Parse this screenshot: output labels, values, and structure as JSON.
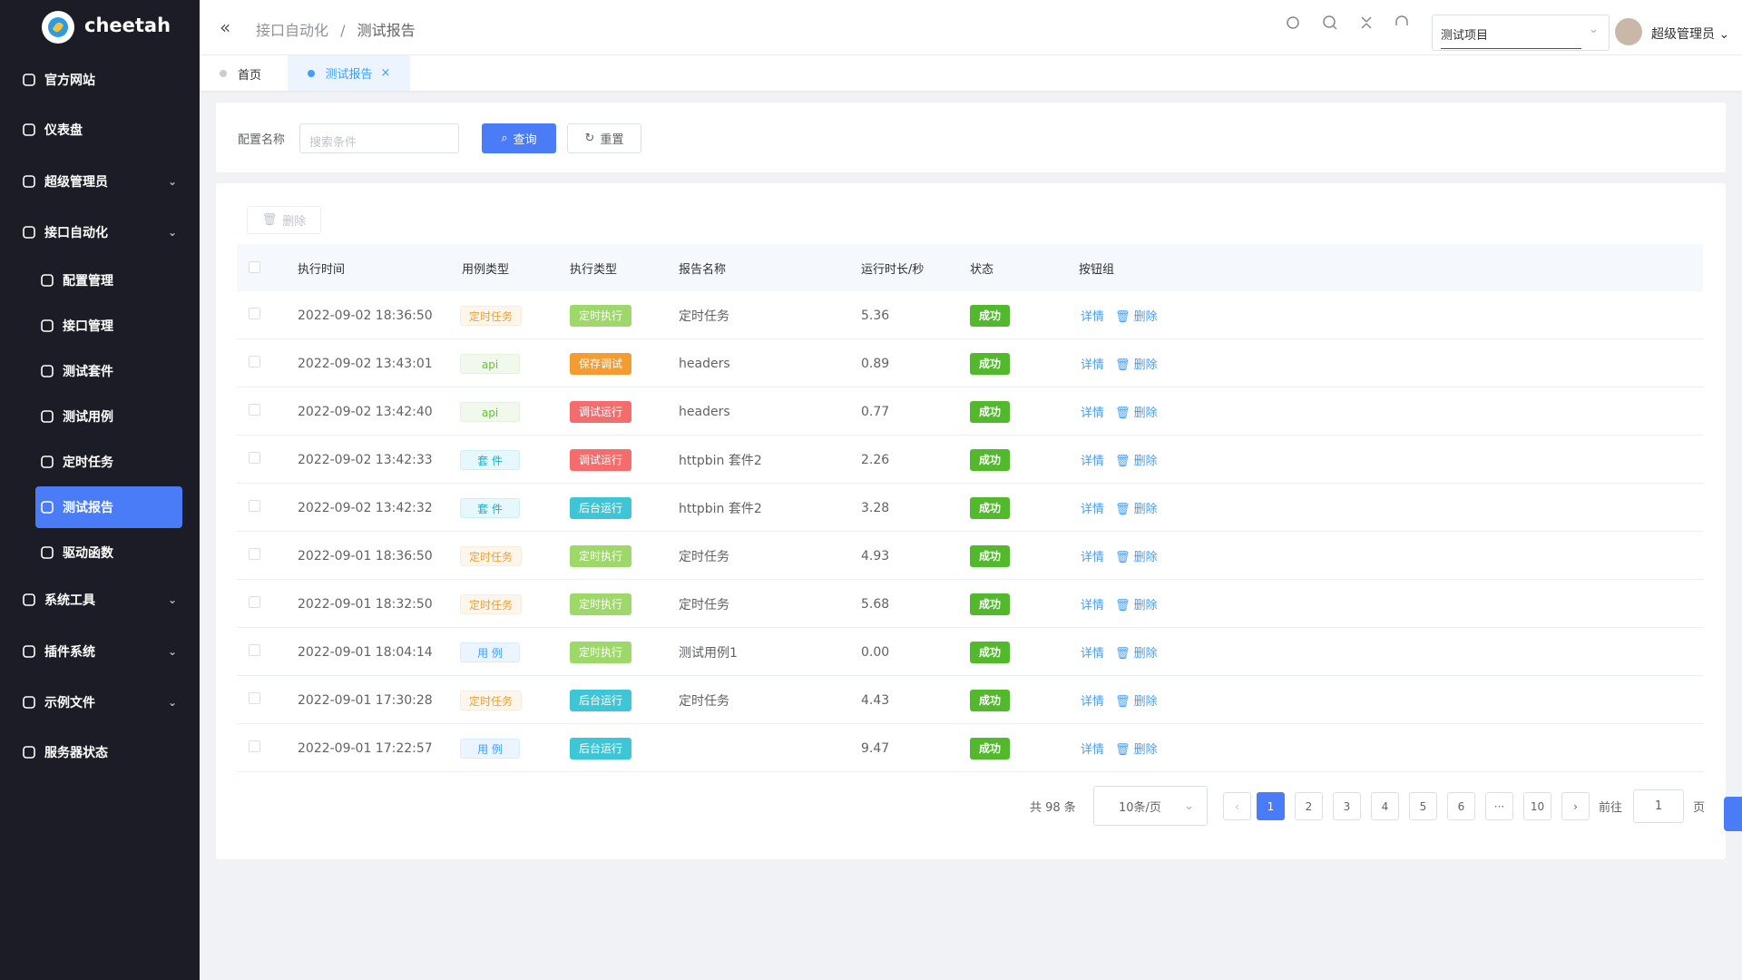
{
  "sidebar": {
    "logo": "cheetah",
    "menu": [
      "官方网站",
      "仪表盘",
      "超级管理员",
      "接口自动化"
    ],
    "submenu": [
      "配置管理",
      "接口管理",
      "测试套件",
      "测试用例",
      "定时任务",
      "测试报告",
      "驱动函数"
    ],
    "menu_after": [
      "系统工具",
      "插件系统",
      "示例文件",
      "服务器状态"
    ],
    "active_submenu": 5
  },
  "header": {
    "breadcrumb": [
      "接口自动化",
      "测试报告"
    ],
    "project": "测试项目",
    "user": "超级管理员"
  },
  "tabs": [
    "首页",
    "测试报告"
  ],
  "search": {
    "label": "配置名称",
    "placeholder": "搜索条件",
    "query": "查询",
    "reset": "重置"
  },
  "toolbar": {
    "delete": "删除"
  },
  "table": {
    "columns": [
      "执行时间",
      "用例类型",
      "执行类型",
      "报告名称",
      "运行时长/秒",
      "状态",
      "按钮组"
    ],
    "actions": [
      "详情",
      "删除"
    ],
    "rows": [
      {
        "time": "2022-09-02 18:36:50",
        "case_type": {
          "label": "定时任务",
          "tone": "t-warning"
        },
        "exec_type": {
          "label": "定时执行",
          "tone": "s-green"
        },
        "name": "定时任务",
        "duration": "5.36",
        "status": "成功"
      },
      {
        "time": "2022-09-02 13:43:01",
        "case_type": {
          "label": "api",
          "tone": "t-success"
        },
        "exec_type": {
          "label": "保存调试",
          "tone": "s-orange"
        },
        "name": "headers",
        "duration": "0.89",
        "status": "成功"
      },
      {
        "time": "2022-09-02 13:42:40",
        "case_type": {
          "label": "api",
          "tone": "t-success"
        },
        "exec_type": {
          "label": "调试运行",
          "tone": "s-red"
        },
        "name": "headers",
        "duration": "0.77",
        "status": "成功"
      },
      {
        "time": "2022-09-02 13:42:33",
        "case_type": {
          "label": "套 件",
          "tone": "t-cyan"
        },
        "exec_type": {
          "label": "调试运行",
          "tone": "s-red"
        },
        "name": "httpbin 套件2",
        "duration": "2.26",
        "status": "成功"
      },
      {
        "time": "2022-09-02 13:42:32",
        "case_type": {
          "label": "套 件",
          "tone": "t-cyan"
        },
        "exec_type": {
          "label": "后台运行",
          "tone": "s-teal"
        },
        "name": "httpbin 套件2",
        "duration": "3.28",
        "status": "成功"
      },
      {
        "time": "2022-09-01 18:36:50",
        "case_type": {
          "label": "定时任务",
          "tone": "t-warning"
        },
        "exec_type": {
          "label": "定时执行",
          "tone": "s-green"
        },
        "name": "定时任务",
        "duration": "4.93",
        "status": "成功"
      },
      {
        "time": "2022-09-01 18:32:50",
        "case_type": {
          "label": "定时任务",
          "tone": "t-warning"
        },
        "exec_type": {
          "label": "定时执行",
          "tone": "s-green"
        },
        "name": "定时任务",
        "duration": "5.68",
        "status": "成功"
      },
      {
        "time": "2022-09-01 18:04:14",
        "case_type": {
          "label": "用 例",
          "tone": "t-primary"
        },
        "exec_type": {
          "label": "定时执行",
          "tone": "s-green"
        },
        "name": "测试用例1",
        "duration": "0.00",
        "status": "成功"
      },
      {
        "time": "2022-09-01 17:30:28",
        "case_type": {
          "label": "定时任务",
          "tone": "t-warning"
        },
        "exec_type": {
          "label": "后台运行",
          "tone": "s-teal"
        },
        "name": "定时任务",
        "duration": "4.43",
        "status": "成功"
      },
      {
        "time": "2022-09-01 17:22:57",
        "case_type": {
          "label": "用 例",
          "tone": "t-primary"
        },
        "exec_type": {
          "label": "后台运行",
          "tone": "s-teal"
        },
        "name": null,
        "duration": "9.47",
        "status": "成功"
      }
    ]
  },
  "pagination": {
    "total": "共 98 条",
    "page_size": "10条/页",
    "pages": [
      "1",
      "2",
      "3",
      "4",
      "5",
      "6",
      "···",
      "10"
    ],
    "current": 0,
    "goto": "前往",
    "goto_value": "1",
    "unit": "页"
  }
}
